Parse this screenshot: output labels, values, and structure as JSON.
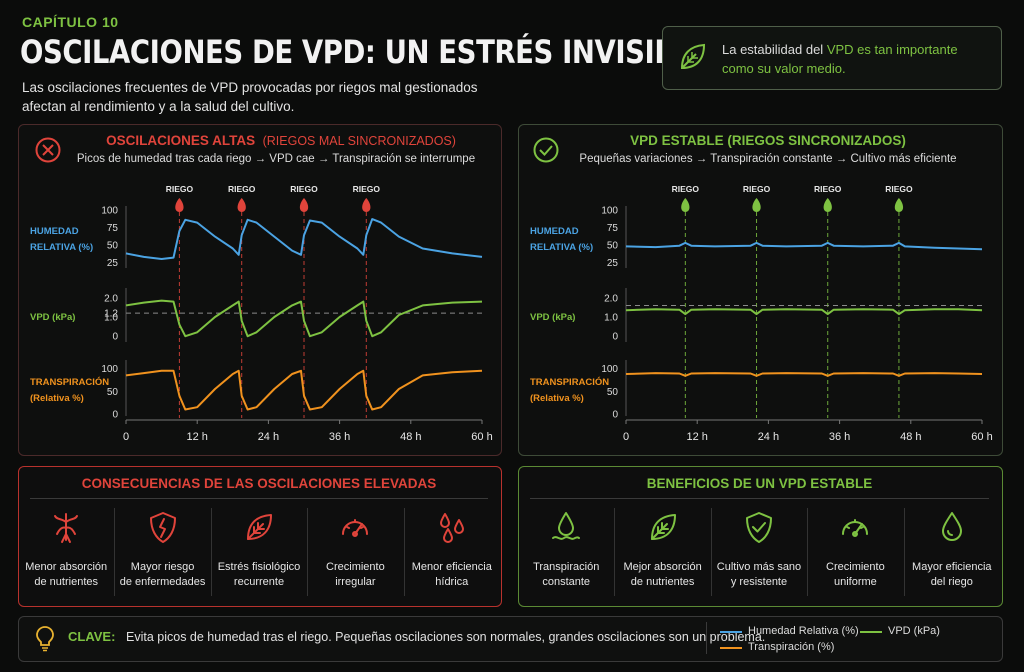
{
  "header": {
    "chapter": "CAPÍTULO 10",
    "title": "OSCILACIONES DE VPD: UN ESTRÉS INVISIBLE",
    "subtitle": "Las oscilaciones frecuentes de VPD provocadas por riegos mal gestionados afectan al rendimiento y a la salud del cultivo."
  },
  "key_message": {
    "part1": "La estabilidad del ",
    "highlight": "VPD es tan importante como su valor medio.",
    "icon": "leaf-icon"
  },
  "left_panel": {
    "title": "OSCILACIONES ALTAS",
    "title_paren": "(RIEGOS MAL SINCRONIZADOS)",
    "subtitle": "Picos de humedad tras cada riego → VPD cae → Transpiración se interrumpe",
    "icon": "x-circle-icon"
  },
  "right_panel": {
    "title": "VPD ESTABLE (RIEGOS SINCRONIZADOS)",
    "subtitle": "Pequeñas variaciones → Transpiración constante → Cultivo más eficiente",
    "icon": "check-circle-icon"
  },
  "axis_labels": {
    "hr": [
      "HUMEDAD",
      "RELATIVA (%)"
    ],
    "vpd": [
      "VPD (kPa)"
    ],
    "tr": [
      "TRANSPIRACIÓN",
      "(Relativa %)"
    ],
    "riego": "RIEGO"
  },
  "colors": {
    "humidity": "#4ba3e3",
    "vpd": "#7ec242",
    "transpiration": "#f0921e",
    "red": "#e0443b",
    "green": "#7ec242"
  },
  "chart_data": [
    {
      "type": "line",
      "panel": "left",
      "x_label_ticks": [
        "0",
        "12 h",
        "24 h",
        "36 h",
        "48 h",
        "60 h"
      ],
      "xlim": [
        0,
        60
      ],
      "riego_times": [
        9,
        19.5,
        30,
        40.5
      ],
      "subplots": [
        {
          "name": "HUMEDAD RELATIVA (%)",
          "yticks": [
            "100",
            "75",
            "50",
            "25"
          ],
          "ylim": [
            20,
            100
          ],
          "series": [
            {
              "x": [
                0,
                3,
                6,
                8,
                9,
                10,
                12,
                15,
                18,
                19,
                19.5,
                20.5,
                22,
                25,
                28,
                29.5,
                30,
                31,
                33,
                36,
                39,
                40,
                40.5,
                41.5,
                43,
                46,
                50,
                55,
                60
              ],
              "y": [
                38,
                33,
                30,
                32,
                70,
                86,
                82,
                62,
                45,
                36,
                64,
                86,
                82,
                62,
                42,
                36,
                64,
                85,
                82,
                62,
                45,
                36,
                64,
                87,
                82,
                62,
                45,
                38,
                33
              ]
            }
          ]
        },
        {
          "name": "VPD (kPa)",
          "yticks": [
            "2.0",
            "1.2",
            "1.0",
            "0"
          ],
          "ylim": [
            -0.2,
            2.3
          ],
          "reference": 1.2,
          "series": [
            {
              "x": [
                0,
                3,
                6,
                8,
                9,
                10,
                12,
                15,
                18,
                19,
                19.5,
                20.5,
                22,
                25,
                28,
                29.5,
                30,
                31,
                33,
                36,
                39,
                40,
                40.5,
                41.5,
                43,
                46,
                50,
                55,
                60
              ],
              "y": [
                1.6,
                1.75,
                1.85,
                1.8,
                0.6,
                0.0,
                0.2,
                1.0,
                1.6,
                1.8,
                0.8,
                0.0,
                0.2,
                1.0,
                1.6,
                1.8,
                0.8,
                0.0,
                0.2,
                1.0,
                1.6,
                1.8,
                0.8,
                0.0,
                0.2,
                1.1,
                1.6,
                1.75,
                1.8
              ]
            }
          ]
        },
        {
          "name": "TRANSPIRACIÓN (Relativa %)",
          "yticks": [
            "100",
            "50",
            "0"
          ],
          "ylim": [
            0,
            110
          ],
          "series": [
            {
              "x": [
                0,
                3,
                6,
                8,
                9,
                10,
                12,
                15,
                18,
                19,
                19.5,
                20.5,
                22,
                25,
                28,
                29.5,
                30,
                31,
                33,
                36,
                39,
                40,
                40.5,
                41.5,
                43,
                46,
                50,
                55,
                60
              ],
              "y": [
                85,
                90,
                95,
                95,
                40,
                10,
                15,
                55,
                88,
                95,
                40,
                10,
                15,
                55,
                88,
                95,
                40,
                10,
                15,
                55,
                88,
                95,
                40,
                10,
                15,
                55,
                85,
                92,
                95
              ]
            }
          ]
        }
      ]
    },
    {
      "type": "line",
      "panel": "right",
      "x_label_ticks": [
        "0",
        "12 h",
        "24 h",
        "36 h",
        "48 h",
        "60 h"
      ],
      "xlim": [
        0,
        60
      ],
      "riego_times": [
        10,
        22,
        34,
        46
      ],
      "subplots": [
        {
          "name": "HUMEDAD RELATIVA (%)",
          "yticks": [
            "100",
            "75",
            "50",
            "25"
          ],
          "ylim": [
            20,
            100
          ],
          "series": [
            {
              "x": [
                0,
                5,
                9,
                10,
                11,
                15,
                21,
                22,
                23,
                27,
                33,
                34,
                35,
                40,
                45,
                46,
                47,
                52,
                56,
                60
              ],
              "y": [
                48,
                47,
                49,
                53,
                49,
                48,
                49,
                53,
                49,
                48,
                49,
                53,
                49,
                48,
                49,
                53,
                48,
                46,
                45,
                44
              ]
            }
          ]
        },
        {
          "name": "VPD (kPa)",
          "yticks": [
            "2.0",
            "1.0",
            "0"
          ],
          "ylim": [
            -0.2,
            2.3
          ],
          "reference": 1.6,
          "series": [
            {
              "x": [
                0,
                5,
                9,
                10,
                11,
                15,
                21,
                22,
                23,
                27,
                33,
                34,
                35,
                40,
                45,
                46,
                47,
                52,
                56,
                60
              ],
              "y": [
                1.35,
                1.4,
                1.38,
                1.15,
                1.38,
                1.4,
                1.38,
                1.15,
                1.38,
                1.4,
                1.38,
                1.15,
                1.38,
                1.4,
                1.38,
                1.15,
                1.35,
                1.4,
                1.4,
                1.35
              ]
            }
          ]
        },
        {
          "name": "TRANSPIRACIÓN (Relativa %)",
          "yticks": [
            "100",
            "50",
            "0"
          ],
          "ylim": [
            0,
            110
          ],
          "series": [
            {
              "x": [
                0,
                5,
                9,
                10,
                11,
                15,
                21,
                22,
                23,
                27,
                33,
                34,
                35,
                40,
                45,
                46,
                47,
                52,
                56,
                60
              ],
              "y": [
                88,
                90,
                89,
                84,
                89,
                90,
                89,
                84,
                89,
                90,
                89,
                84,
                89,
                90,
                89,
                84,
                89,
                90,
                89,
                88
              ]
            }
          ]
        }
      ]
    }
  ],
  "consequences": {
    "title": "CONSECUENCIAS DE LAS OSCILACIONES ELEVADAS",
    "items": [
      {
        "icon": "roots-icon",
        "line1": "Menor absorción",
        "line2": "de nutrientes"
      },
      {
        "icon": "shield-crack-icon",
        "line1": "Mayor riesgo",
        "line2": "de enfermedades"
      },
      {
        "icon": "leaf-icon",
        "line1": "Estrés fisiológico",
        "line2": "recurrente"
      },
      {
        "icon": "gauge-icon",
        "line1": "Crecimiento",
        "line2": "irregular"
      },
      {
        "icon": "drops-icon",
        "line1": "Menor eficiencia",
        "line2": "hídrica"
      }
    ]
  },
  "benefits": {
    "title": "BENEFICIOS DE UN VPD ESTABLE",
    "items": [
      {
        "icon": "drop-wave-icon",
        "line1": "Transpiración",
        "line2": "constante"
      },
      {
        "icon": "leaf-icon",
        "line1": "Mejor absorción",
        "line2": "de nutrientes"
      },
      {
        "icon": "shield-check-icon",
        "line1": "Cultivo más sano",
        "line2": "y resistente"
      },
      {
        "icon": "gauge-icon",
        "line1": "Crecimiento",
        "line2": "uniforme"
      },
      {
        "icon": "drop-icon",
        "line1": "Mayor eficiencia",
        "line2": "del riego"
      }
    ]
  },
  "footer": {
    "label": "CLAVE:",
    "text": "Evita picos de humedad tras el riego. Pequeñas oscilaciones son normales, grandes oscilaciones son un problema.",
    "icon": "lightbulb-icon",
    "legend": [
      "Humedad Relativa (%)",
      "VPD (kPa)",
      "Transpiración (%)"
    ]
  }
}
